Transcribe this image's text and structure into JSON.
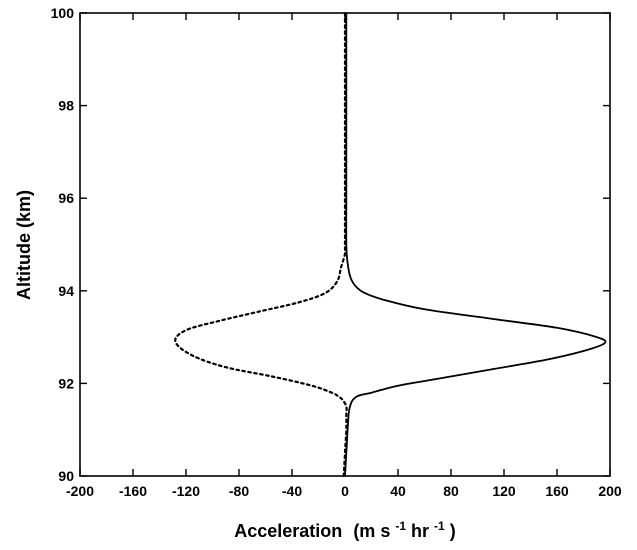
{
  "chart_data": {
    "type": "line",
    "title": "",
    "xlabel": "Acceleration",
    "xlabel_units": {
      "open": "(m s",
      "exp1": "-1",
      "mid": " hr",
      "exp2": "-1",
      "close": ")"
    },
    "ylabel": "Altitude (km)",
    "xlim": [
      -200,
      200
    ],
    "ylim": [
      90,
      100
    ],
    "x_ticks": [
      -200,
      -160,
      -120,
      -80,
      -40,
      0,
      40,
      80,
      120,
      160,
      200
    ],
    "x_tick_labels": [
      "-200",
      "-160",
      "-120",
      "-80",
      "-40",
      "0",
      "40",
      "80",
      "120",
      "160",
      "200"
    ],
    "y_ticks": [
      90,
      92,
      94,
      96,
      98,
      100
    ],
    "y_tick_labels": [
      "90",
      "92",
      "94",
      "96",
      "98",
      "100"
    ],
    "grid": false,
    "legend": "none",
    "series": [
      {
        "style": "solid",
        "color": "#000000",
        "points": [
          [
            0,
            90
          ],
          [
            1,
            90.5
          ],
          [
            2,
            91
          ],
          [
            3,
            91.4
          ],
          [
            5,
            91.6
          ],
          [
            8,
            91.7
          ],
          [
            12,
            91.75
          ],
          [
            20,
            91.8
          ],
          [
            40,
            91.95
          ],
          [
            70,
            92.1
          ],
          [
            110,
            92.3
          ],
          [
            150,
            92.5
          ],
          [
            180,
            92.7
          ],
          [
            196,
            92.87
          ],
          [
            190,
            93.0
          ],
          [
            160,
            93.2
          ],
          [
            110,
            93.4
          ],
          [
            60,
            93.6
          ],
          [
            30,
            93.8
          ],
          [
            15,
            93.95
          ],
          [
            8,
            94.1
          ],
          [
            4,
            94.3
          ],
          [
            2,
            94.6
          ],
          [
            1,
            95
          ],
          [
            1,
            96
          ],
          [
            1,
            97
          ],
          [
            1,
            98
          ],
          [
            1,
            99
          ],
          [
            1,
            100
          ]
        ]
      },
      {
        "style": "dotted",
        "color": "#000000",
        "points": [
          [
            -1,
            90
          ],
          [
            0,
            90.5
          ],
          [
            1,
            91
          ],
          [
            1,
            91.3
          ],
          [
            1,
            91.5
          ],
          [
            -2,
            91.65
          ],
          [
            -5,
            91.72
          ],
          [
            -10,
            91.8
          ],
          [
            -25,
            91.95
          ],
          [
            -55,
            92.15
          ],
          [
            -90,
            92.35
          ],
          [
            -115,
            92.6
          ],
          [
            -128,
            92.9
          ],
          [
            -120,
            93.15
          ],
          [
            -95,
            93.35
          ],
          [
            -65,
            93.55
          ],
          [
            -35,
            93.75
          ],
          [
            -15,
            93.95
          ],
          [
            -6,
            94.2
          ],
          [
            -3,
            94.5
          ],
          [
            0,
            94.8
          ],
          [
            0,
            95
          ],
          [
            0,
            96
          ],
          [
            0,
            97
          ],
          [
            0,
            98
          ],
          [
            0,
            99
          ],
          [
            0,
            100
          ]
        ]
      }
    ]
  }
}
